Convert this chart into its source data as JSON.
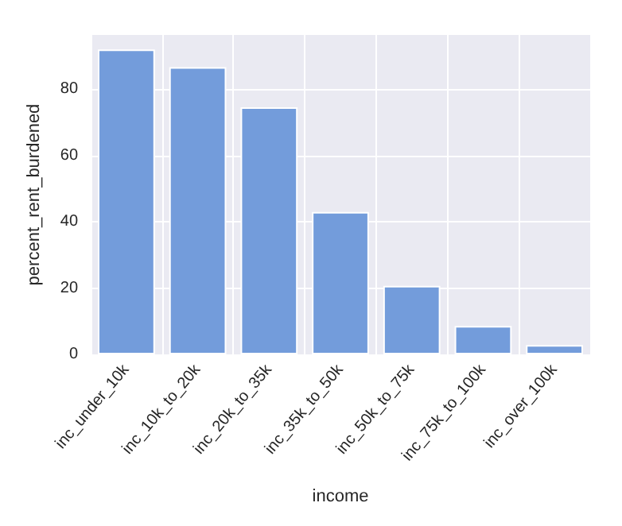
{
  "chart_data": {
    "type": "bar",
    "xlabel": "income",
    "ylabel": "percent_rent_burdened",
    "categories": [
      "inc_under_10k",
      "inc_10k_to_20k",
      "inc_20k_to_35k",
      "inc_35k_to_50k",
      "inc_50k_to_75k",
      "inc_75k_to_100k",
      "inc_over_100k"
    ],
    "values": [
      92.0,
      86.7,
      74.6,
      43.0,
      20.7,
      8.6,
      2.8
    ],
    "color": "#739cdb",
    "ylim": [
      0,
      96.4
    ],
    "yticks": [
      0,
      20,
      40,
      60,
      80
    ],
    "grid": true
  }
}
